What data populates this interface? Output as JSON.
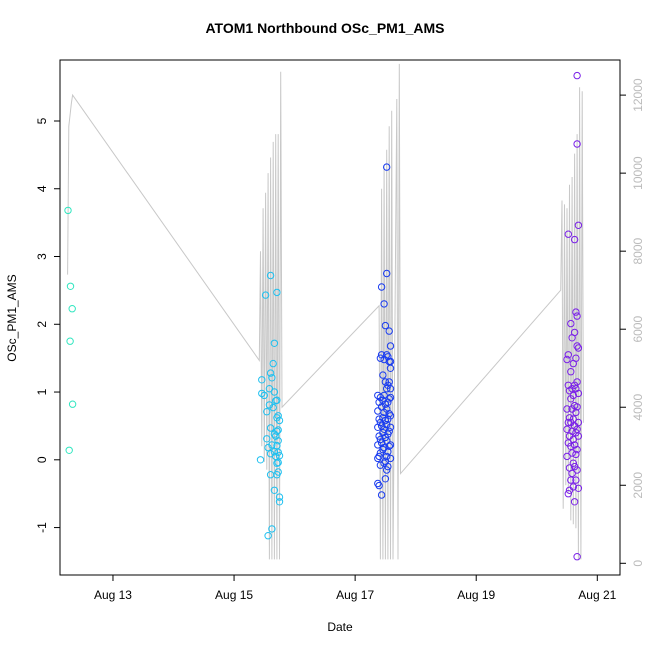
{
  "chart_data": {
    "type": "scatter",
    "title": "ATOM1 Northbound OSc_PM1_AMS",
    "xlabel": "Date",
    "ylabel": "OSc_PM1_AMS",
    "x_ticks": [
      "Aug 13",
      "Aug 15",
      "Aug 17",
      "Aug 19",
      "Aug 21"
    ],
    "y_ticks": [
      "-1",
      "0",
      "1",
      "2",
      "3",
      "4",
      "5"
    ],
    "y2_ticks": [
      "0",
      "2000",
      "4000",
      "6000",
      "8000",
      "10000",
      "12000"
    ],
    "xlim": [
      "2016-08-12T03:00",
      "2016-08-21T09:00"
    ],
    "ylim": [
      -1.7,
      5.9
    ],
    "y2lim": [
      -300,
      12900
    ],
    "line_color": "#c8c8c8",
    "y2_tick_color": "#bbbbbb",
    "groups": [
      {
        "color": "#30e6c0",
        "points": [
          [
            "2016-08-12T06:10",
            3.68
          ],
          [
            "2016-08-12T06:40",
            0.14
          ],
          [
            "2016-08-12T07:00",
            1.75
          ],
          [
            "2016-08-12T07:10",
            2.56
          ],
          [
            "2016-08-12T07:50",
            2.23
          ],
          [
            "2016-08-12T08:00",
            0.82
          ]
        ]
      },
      {
        "color": "#1ec0f0",
        "points": [
          [
            "2016-08-15T10:30",
            0.0
          ],
          [
            "2016-08-15T11:00",
            1.18
          ],
          [
            "2016-08-15T11:00",
            0.98
          ],
          [
            "2016-08-15T12:00",
            0.95
          ],
          [
            "2016-08-15T12:30",
            2.43
          ],
          [
            "2016-08-15T13:00",
            0.71
          ],
          [
            "2016-08-15T13:00",
            0.31
          ],
          [
            "2016-08-15T13:30",
            0.18
          ],
          [
            "2016-08-15T13:30",
            -1.12
          ],
          [
            "2016-08-15T14:00",
            1.05
          ],
          [
            "2016-08-15T14:00",
            0.81
          ],
          [
            "2016-08-15T14:30",
            2.72
          ],
          [
            "2016-08-15T14:30",
            1.28
          ],
          [
            "2016-08-15T14:30",
            0.47
          ],
          [
            "2016-08-15T14:30",
            0.09
          ],
          [
            "2016-08-15T14:30",
            -0.22
          ],
          [
            "2016-08-15T15:00",
            1.21
          ],
          [
            "2016-08-15T15:00",
            0.22
          ],
          [
            "2016-08-15T15:00",
            -1.02
          ],
          [
            "2016-08-15T15:30",
            1.42
          ],
          [
            "2016-08-15T15:30",
            0.77
          ],
          [
            "2016-08-15T16:00",
            1.72
          ],
          [
            "2016-08-15T16:00",
            1.0
          ],
          [
            "2016-08-15T16:00",
            0.38
          ],
          [
            "2016-08-15T16:00",
            0.12
          ],
          [
            "2016-08-15T16:00",
            -0.45
          ],
          [
            "2016-08-15T16:30",
            0.87
          ],
          [
            "2016-08-15T16:30",
            0.35
          ],
          [
            "2016-08-15T16:30",
            0.05
          ],
          [
            "2016-08-15T17:00",
            2.47
          ],
          [
            "2016-08-15T17:00",
            0.88
          ],
          [
            "2016-08-15T17:00",
            0.62
          ],
          [
            "2016-08-15T17:00",
            0.42
          ],
          [
            "2016-08-15T17:00",
            0.21
          ],
          [
            "2016-08-15T17:00",
            -0.05
          ],
          [
            "2016-08-15T17:00",
            -0.22
          ],
          [
            "2016-08-15T17:30",
            0.65
          ],
          [
            "2016-08-15T17:30",
            0.44
          ],
          [
            "2016-08-15T17:30",
            0.28
          ],
          [
            "2016-08-15T17:30",
            0.11
          ],
          [
            "2016-08-15T17:30",
            -0.04
          ],
          [
            "2016-08-15T17:30",
            -0.18
          ],
          [
            "2016-08-15T18:00",
            0.58
          ],
          [
            "2016-08-15T18:00",
            0.06
          ],
          [
            "2016-08-15T18:00",
            -0.55
          ],
          [
            "2016-08-15T18:00",
            -0.62
          ]
        ]
      },
      {
        "color": "#1a3cf0",
        "points": [
          [
            "2016-08-17T09:00",
            0.95
          ],
          [
            "2016-08-17T09:00",
            0.72
          ],
          [
            "2016-08-17T09:00",
            0.48
          ],
          [
            "2016-08-17T09:00",
            0.22
          ],
          [
            "2016-08-17T09:00",
            0.02
          ],
          [
            "2016-08-17T09:00",
            -0.35
          ],
          [
            "2016-08-17T09:30",
            0.85
          ],
          [
            "2016-08-17T09:30",
            0.6
          ],
          [
            "2016-08-17T09:30",
            0.35
          ],
          [
            "2016-08-17T09:30",
            0.05
          ],
          [
            "2016-08-17T09:30",
            -0.38
          ],
          [
            "2016-08-17T10:00",
            1.5
          ],
          [
            "2016-08-17T10:00",
            0.92
          ],
          [
            "2016-08-17T10:00",
            0.55
          ],
          [
            "2016-08-17T10:00",
            0.3
          ],
          [
            "2016-08-17T10:00",
            0.1
          ],
          [
            "2016-08-17T10:00",
            -0.08
          ],
          [
            "2016-08-17T10:30",
            2.55
          ],
          [
            "2016-08-17T10:30",
            1.55
          ],
          [
            "2016-08-17T10:30",
            0.78
          ],
          [
            "2016-08-17T10:30",
            0.5
          ],
          [
            "2016-08-17T10:30",
            0.25
          ],
          [
            "2016-08-17T10:30",
            -0.52
          ],
          [
            "2016-08-17T11:00",
            1.25
          ],
          [
            "2016-08-17T11:00",
            0.88
          ],
          [
            "2016-08-17T11:00",
            0.62
          ],
          [
            "2016-08-17T11:00",
            0.4
          ],
          [
            "2016-08-17T11:00",
            0.15
          ],
          [
            "2016-08-17T11:30",
            2.3
          ],
          [
            "2016-08-17T11:30",
            1.48
          ],
          [
            "2016-08-17T11:30",
            0.95
          ],
          [
            "2016-08-17T11:30",
            0.7
          ],
          [
            "2016-08-17T11:30",
            0.45
          ],
          [
            "2016-08-17T11:30",
            0.18
          ],
          [
            "2016-08-17T11:30",
            -0.05
          ],
          [
            "2016-08-17T12:00",
            1.98
          ],
          [
            "2016-08-17T12:00",
            1.15
          ],
          [
            "2016-08-17T12:00",
            0.82
          ],
          [
            "2016-08-17T12:00",
            0.58
          ],
          [
            "2016-08-17T12:00",
            0.33
          ],
          [
            "2016-08-17T12:00",
            -0.02
          ],
          [
            "2016-08-17T12:00",
            -0.28
          ],
          [
            "2016-08-17T12:30",
            4.32
          ],
          [
            "2016-08-17T12:30",
            2.75
          ],
          [
            "2016-08-17T12:30",
            1.55
          ],
          [
            "2016-08-17T12:30",
            1.05
          ],
          [
            "2016-08-17T12:30",
            0.75
          ],
          [
            "2016-08-17T12:30",
            0.52
          ],
          [
            "2016-08-17T12:30",
            0.28
          ],
          [
            "2016-08-17T12:30",
            0.05
          ],
          [
            "2016-08-17T12:30",
            -0.15
          ],
          [
            "2016-08-17T13:00",
            1.52
          ],
          [
            "2016-08-17T13:00",
            1.1
          ],
          [
            "2016-08-17T13:00",
            0.85
          ],
          [
            "2016-08-17T13:00",
            0.6
          ],
          [
            "2016-08-17T13:00",
            0.38
          ],
          [
            "2016-08-17T13:00",
            0.12
          ],
          [
            "2016-08-17T13:00",
            -0.1
          ],
          [
            "2016-08-17T13:30",
            1.9
          ],
          [
            "2016-08-17T13:30",
            1.45
          ],
          [
            "2016-08-17T13:30",
            1.15
          ],
          [
            "2016-08-17T13:30",
            0.9
          ],
          [
            "2016-08-17T13:30",
            0.68
          ],
          [
            "2016-08-17T13:30",
            0.42
          ],
          [
            "2016-08-17T13:30",
            0.2
          ],
          [
            "2016-08-17T14:00",
            1.68
          ],
          [
            "2016-08-17T14:00",
            1.45
          ],
          [
            "2016-08-17T14:00",
            1.35
          ],
          [
            "2016-08-17T14:00",
            1.05
          ],
          [
            "2016-08-17T14:00",
            0.92
          ],
          [
            "2016-08-17T14:00",
            0.65
          ],
          [
            "2016-08-17T14:00",
            0.48
          ],
          [
            "2016-08-17T14:00",
            0.22
          ],
          [
            "2016-08-17T14:00",
            0.02
          ]
        ]
      },
      {
        "color": "#7a20e8",
        "points": [
          [
            "2016-08-20T12:00",
            1.48
          ],
          [
            "2016-08-20T12:00",
            0.75
          ],
          [
            "2016-08-20T12:00",
            0.45
          ],
          [
            "2016-08-20T12:00",
            0.05
          ],
          [
            "2016-08-20T12:30",
            3.33
          ],
          [
            "2016-08-20T12:30",
            1.55
          ],
          [
            "2016-08-20T12:30",
            1.1
          ],
          [
            "2016-08-20T12:30",
            0.55
          ],
          [
            "2016-08-20T12:30",
            0.25
          ],
          [
            "2016-08-20T12:30",
            -0.5
          ],
          [
            "2016-08-20T13:00",
            1.02
          ],
          [
            "2016-08-20T13:00",
            0.62
          ],
          [
            "2016-08-20T13:00",
            0.35
          ],
          [
            "2016-08-20T13:00",
            -0.12
          ],
          [
            "2016-08-20T13:00",
            -0.45
          ],
          [
            "2016-08-20T13:30",
            2.01
          ],
          [
            "2016-08-20T13:30",
            1.3
          ],
          [
            "2016-08-20T13:30",
            0.9
          ],
          [
            "2016-08-20T13:30",
            0.55
          ],
          [
            "2016-08-20T13:30",
            0.2
          ],
          [
            "2016-08-20T13:30",
            -0.3
          ],
          [
            "2016-08-20T14:00",
            1.8
          ],
          [
            "2016-08-20T14:00",
            1.05
          ],
          [
            "2016-08-20T14:00",
            0.75
          ],
          [
            "2016-08-20T14:00",
            0.42
          ],
          [
            "2016-08-20T14:00",
            0.1
          ],
          [
            "2016-08-20T14:00",
            -0.2
          ],
          [
            "2016-08-20T14:30",
            1.42
          ],
          [
            "2016-08-20T14:30",
            0.95
          ],
          [
            "2016-08-20T14:30",
            0.6
          ],
          [
            "2016-08-20T14:30",
            0.3
          ],
          [
            "2016-08-20T14:30",
            -0.05
          ],
          [
            "2016-08-20T14:30",
            -0.4
          ],
          [
            "2016-08-20T15:00",
            3.25
          ],
          [
            "2016-08-20T15:00",
            1.88
          ],
          [
            "2016-08-20T15:00",
            1.1
          ],
          [
            "2016-08-20T15:00",
            0.8
          ],
          [
            "2016-08-20T15:00",
            0.5
          ],
          [
            "2016-08-20T15:00",
            0.22
          ],
          [
            "2016-08-20T15:00",
            -0.1
          ],
          [
            "2016-08-20T15:00",
            -0.62
          ],
          [
            "2016-08-20T15:30",
            2.18
          ],
          [
            "2016-08-20T15:30",
            1.5
          ],
          [
            "2016-08-20T15:30",
            1.05
          ],
          [
            "2016-08-20T15:30",
            0.7
          ],
          [
            "2016-08-20T15:30",
            0.4
          ],
          [
            "2016-08-20T15:30",
            0.08
          ],
          [
            "2016-08-20T15:30",
            -0.3
          ],
          [
            "2016-08-20T16:00",
            5.67
          ],
          [
            "2016-08-20T16:00",
            4.66
          ],
          [
            "2016-08-20T16:00",
            2.12
          ],
          [
            "2016-08-20T16:00",
            1.68
          ],
          [
            "2016-08-20T16:00",
            1.15
          ],
          [
            "2016-08-20T16:00",
            0.78
          ],
          [
            "2016-08-20T16:00",
            0.45
          ],
          [
            "2016-08-20T16:00",
            0.15
          ],
          [
            "2016-08-20T16:00",
            -0.15
          ],
          [
            "2016-08-20T16:00",
            -1.43
          ],
          [
            "2016-08-20T16:30",
            3.46
          ],
          [
            "2016-08-20T16:30",
            1.65
          ],
          [
            "2016-08-20T16:30",
            0.98
          ],
          [
            "2016-08-20T16:30",
            0.55
          ],
          [
            "2016-08-20T16:30",
            0.35
          ],
          [
            "2016-08-20T16:30",
            -0.42
          ]
        ]
      }
    ],
    "y2_series": [
      [
        "2016-08-12T06:00",
        7400
      ],
      [
        "2016-08-12T06:30",
        11200
      ],
      [
        "2016-08-12T07:30",
        11800
      ],
      [
        "2016-08-12T08:00",
        12000
      ],
      [
        "2016-08-15T10:00",
        5200
      ],
      [
        "2016-08-15T10:30",
        8000
      ],
      [
        "2016-08-15T11:00",
        3000
      ],
      [
        "2016-08-15T11:30",
        9100
      ],
      [
        "2016-08-15T12:00",
        2600
      ],
      [
        "2016-08-15T12:30",
        9500
      ],
      [
        "2016-08-15T13:00",
        2400
      ],
      [
        "2016-08-15T13:30",
        10000
      ],
      [
        "2016-08-15T14:00",
        100
      ],
      [
        "2016-08-15T14:30",
        10400
      ],
      [
        "2016-08-15T15:00",
        100
      ],
      [
        "2016-08-15T15:30",
        10800
      ],
      [
        "2016-08-15T16:00",
        100
      ],
      [
        "2016-08-15T16:30",
        11000
      ],
      [
        "2016-08-15T17:00",
        100
      ],
      [
        "2016-08-15T17:30",
        11000
      ],
      [
        "2016-08-15T18:00",
        100
      ],
      [
        "2016-08-15T18:30",
        12600
      ],
      [
        "2016-08-15T19:00",
        4000
      ],
      [
        "2016-08-17T09:30",
        6600
      ],
      [
        "2016-08-17T10:00",
        100
      ],
      [
        "2016-08-17T10:30",
        9600
      ],
      [
        "2016-08-17T11:00",
        100
      ],
      [
        "2016-08-17T11:30",
        10200
      ],
      [
        "2016-08-17T12:00",
        100
      ],
      [
        "2016-08-17T12:30",
        10600
      ],
      [
        "2016-08-17T13:00",
        100
      ],
      [
        "2016-08-17T13:30",
        11200
      ],
      [
        "2016-08-17T14:00",
        100
      ],
      [
        "2016-08-17T14:30",
        11600
      ],
      [
        "2016-08-17T15:00",
        100
      ],
      [
        "2016-08-17T16:30",
        11900
      ],
      [
        "2016-08-17T17:00",
        100
      ],
      [
        "2016-08-17T17:30",
        12800
      ],
      [
        "2016-08-17T18:00",
        2300
      ],
      [
        "2016-08-20T09:30",
        7000
      ],
      [
        "2016-08-20T10:00",
        9300
      ],
      [
        "2016-08-20T10:30",
        1400
      ],
      [
        "2016-08-20T11:00",
        9200
      ],
      [
        "2016-08-20T11:30",
        2000
      ],
      [
        "2016-08-20T12:00",
        9100
      ],
      [
        "2016-08-20T12:30",
        1800
      ],
      [
        "2016-08-20T13:00",
        9700
      ],
      [
        "2016-08-20T13:30",
        1100
      ],
      [
        "2016-08-20T14:00",
        9900
      ],
      [
        "2016-08-20T14:30",
        1000
      ],
      [
        "2016-08-20T15:00",
        10500
      ],
      [
        "2016-08-20T15:30",
        900
      ],
      [
        "2016-08-20T16:00",
        11000
      ],
      [
        "2016-08-20T16:30",
        100
      ],
      [
        "2016-08-20T17:00",
        12200
      ],
      [
        "2016-08-20T17:30",
        100
      ],
      [
        "2016-08-20T18:00",
        12100
      ],
      [
        "2016-08-20T18:30",
        3600
      ]
    ]
  }
}
